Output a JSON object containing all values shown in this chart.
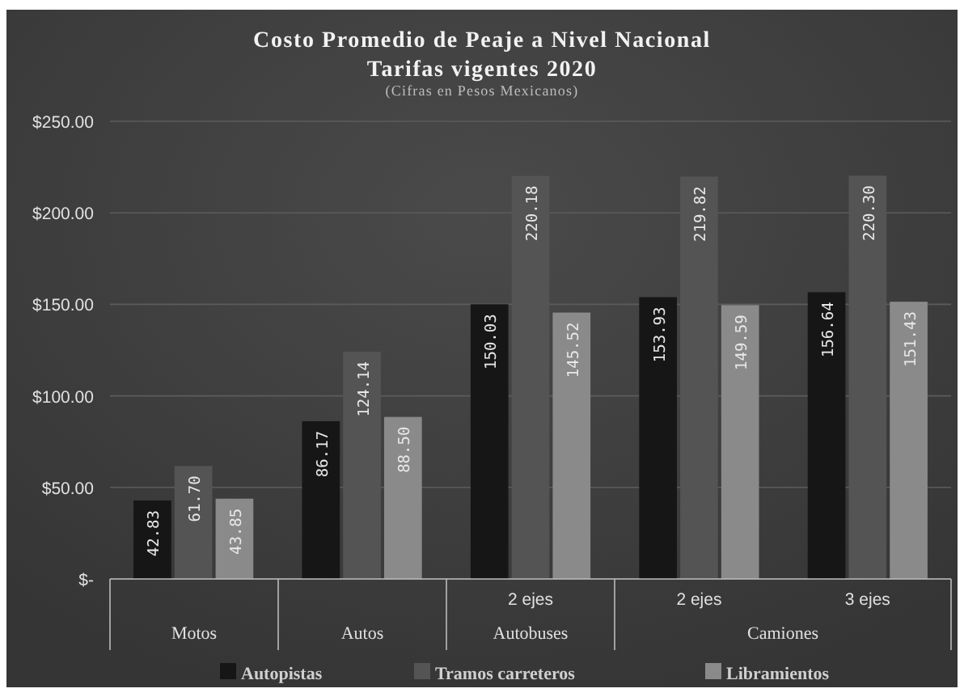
{
  "chart_data": {
    "type": "bar",
    "title": "Costo Promedio de Peaje a Nivel Nacional",
    "subtitle": "Tarifas vigentes 2020",
    "annotations": [
      "(Cifras en Pesos Mexicanos)",
      "Motos",
      "Autos",
      "Autobuses",
      "Camiones"
    ],
    "categories": [
      null,
      null,
      "2 ejes",
      "2 ejes",
      "3 ejes"
    ],
    "series": [
      {
        "name": "Autopistas",
        "color": "#161616",
        "values": [
          42.83,
          86.17,
          150.03,
          153.93,
          156.64
        ],
        "value_labels": [
          "42.83",
          "86.17",
          "150.03",
          "153.93",
          "156.64"
        ]
      },
      {
        "name": "Tramos carreteros",
        "color": "#545454",
        "values": [
          61.7,
          124.14,
          220.18,
          219.82,
          220.3
        ],
        "value_labels": [
          "61.70",
          "124.14",
          "220.18",
          "219.82",
          "220.30"
        ]
      },
      {
        "name": "Libramientos",
        "color": "#8a8a8a",
        "values": [
          43.85,
          88.5,
          145.52,
          149.59,
          151.43
        ],
        "value_labels": [
          "43.85",
          "88.50",
          "145.52",
          "149.59",
          "151.43"
        ]
      }
    ],
    "ylim": [
      0,
      250
    ],
    "yticks": [
      {
        "value": 0,
        "label": "$-"
      },
      {
        "value": 50,
        "label": "$50.00"
      },
      {
        "value": 100,
        "label": "$100.00"
      },
      {
        "value": 150,
        "label": "$150.00"
      },
      {
        "value": 200,
        "label": "$200.00"
      },
      {
        "value": 250,
        "label": "$250.00"
      }
    ],
    "grid": "y",
    "legend": "bottom"
  }
}
